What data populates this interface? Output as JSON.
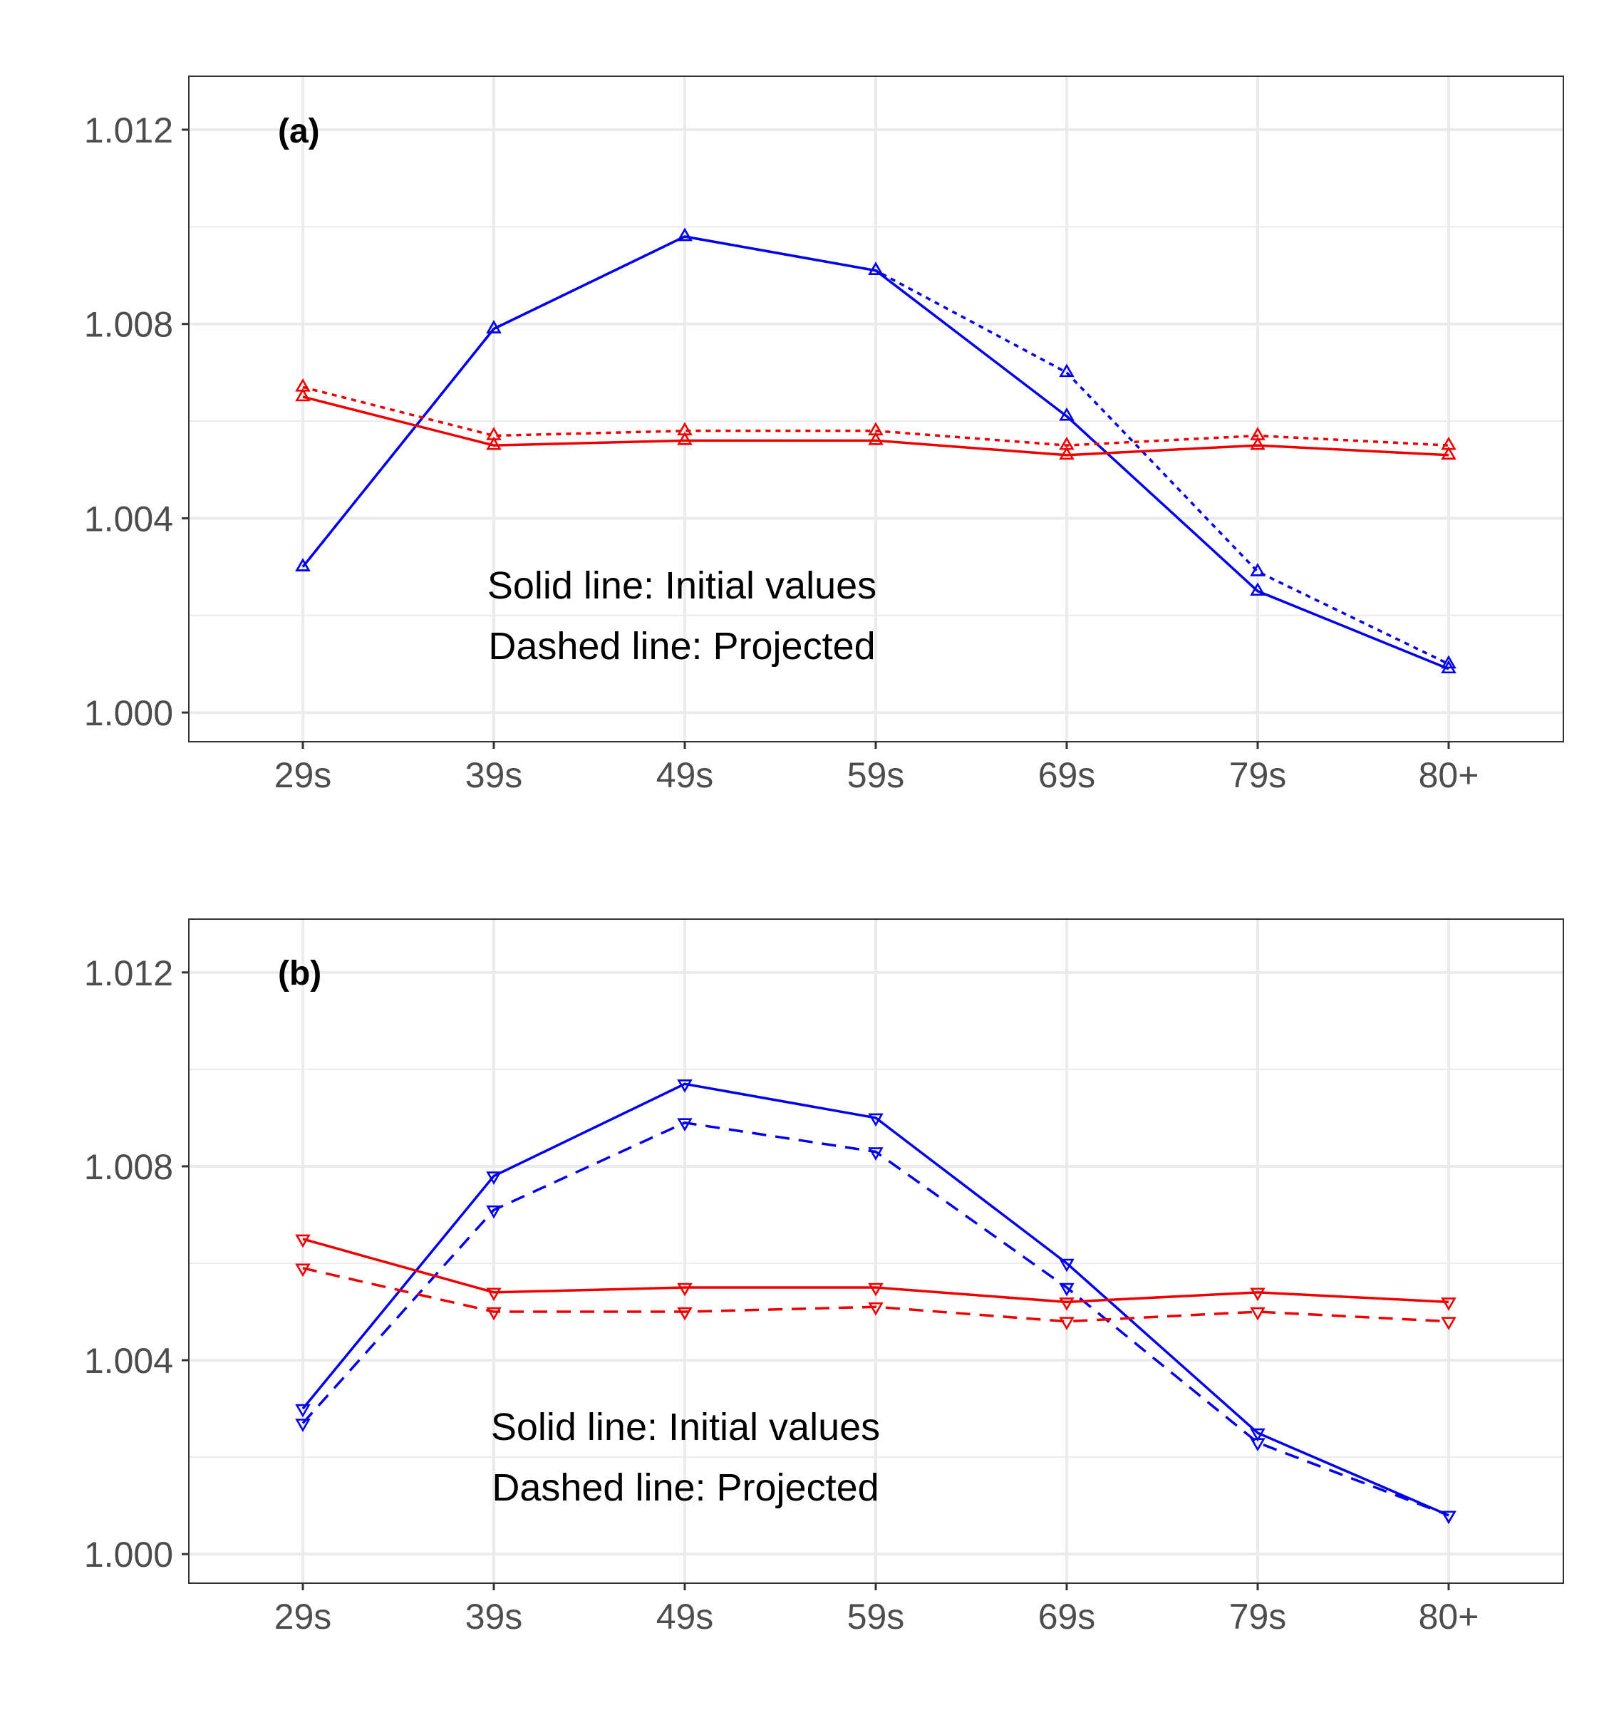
{
  "chart_data": [
    {
      "type": "line",
      "panel_label": "(a)",
      "categories": [
        "29s",
        "39s",
        "49s",
        "59s",
        "69s",
        "79s",
        "80+"
      ],
      "y_ticks": [
        "1.000",
        "1.004",
        "1.008",
        "1.012"
      ],
      "ylim": [
        0.9994,
        1.0131
      ],
      "grid": true,
      "legend": "none",
      "annotations": [
        "Solid line: Initial values",
        "Dashed line: Projected"
      ],
      "marker": "triangle-up",
      "series": [
        {
          "color": "#0000ee",
          "linestyle": "solid",
          "values": [
            1.003,
            1.0079,
            1.0098,
            1.0091,
            1.0061,
            1.0025,
            1.0009
          ]
        },
        {
          "color": "#0000ee",
          "linestyle": "dotted",
          "values": [
            1.003,
            1.0079,
            1.0098,
            1.0091,
            1.007,
            1.0029,
            1.001
          ]
        },
        {
          "color": "#ee0000",
          "linestyle": "solid",
          "values": [
            1.0065,
            1.0055,
            1.0056,
            1.0056,
            1.0053,
            1.0055,
            1.0053
          ]
        },
        {
          "color": "#ee0000",
          "linestyle": "dotted",
          "values": [
            1.0067,
            1.0057,
            1.0058,
            1.0058,
            1.0055,
            1.0057,
            1.0055
          ]
        }
      ]
    },
    {
      "type": "line",
      "panel_label": "(b)",
      "categories": [
        "29s",
        "39s",
        "49s",
        "59s",
        "69s",
        "79s",
        "80+"
      ],
      "y_ticks": [
        "1.000",
        "1.004",
        "1.008",
        "1.012"
      ],
      "ylim": [
        0.9994,
        1.0131
      ],
      "grid": true,
      "legend": "none",
      "annotations": [
        "Solid line: Initial values",
        "Dashed line: Projected"
      ],
      "marker": "triangle-down",
      "series": [
        {
          "color": "#0000ee",
          "linestyle": "solid",
          "values": [
            1.003,
            1.0078,
            1.0097,
            1.009,
            1.006,
            1.0025,
            1.0008
          ]
        },
        {
          "color": "#0000ee",
          "linestyle": "dashed",
          "values": [
            1.0027,
            1.0071,
            1.0089,
            1.0083,
            1.0055,
            1.0023,
            1.0008
          ]
        },
        {
          "color": "#ee0000",
          "linestyle": "solid",
          "values": [
            1.0065,
            1.0054,
            1.0055,
            1.0055,
            1.0052,
            1.0054,
            1.0052
          ]
        },
        {
          "color": "#ee0000",
          "linestyle": "dashed",
          "values": [
            1.0059,
            1.005,
            1.005,
            1.0051,
            1.0048,
            1.005,
            1.0048
          ]
        }
      ]
    }
  ]
}
